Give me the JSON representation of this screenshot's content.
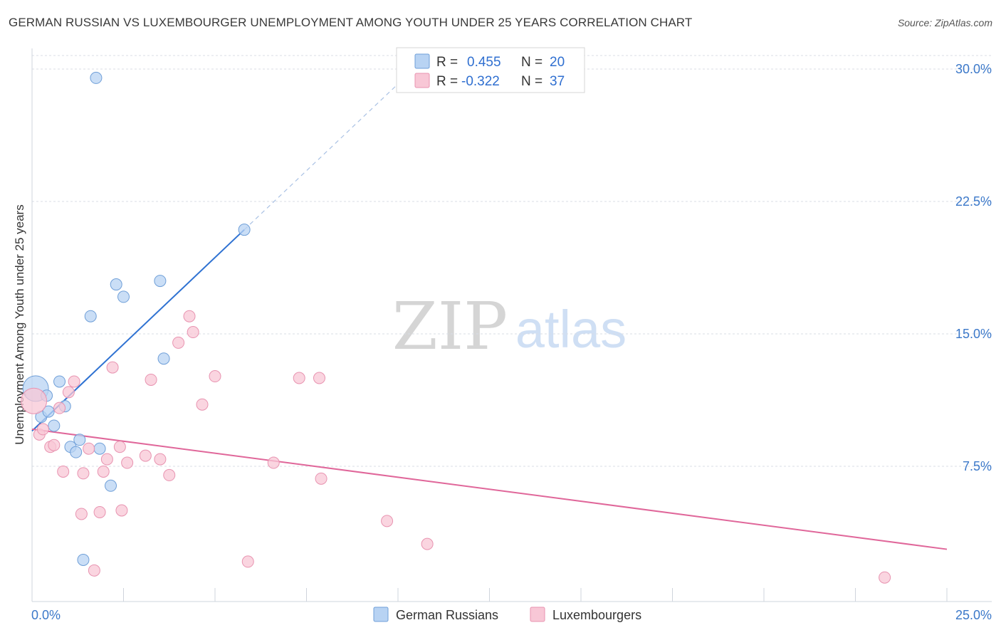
{
  "title": "GERMAN RUSSIAN VS LUXEMBOURGER UNEMPLOYMENT AMONG YOUTH UNDER 25 YEARS CORRELATION CHART",
  "source": "Source: ZipAtlas.com",
  "watermark": {
    "zip": "ZIP",
    "atlas": "atlas"
  },
  "colors": {
    "blue_fill": "#b8d3f3",
    "blue_stroke": "#6f9fd8",
    "blue_line": "#2f72d2",
    "pink_fill": "#f8c7d6",
    "pink_stroke": "#e893b0",
    "pink_line": "#e0679a",
    "grid": "#d8dde6",
    "tick_text": "#3b78c9"
  },
  "legend": {
    "rows": [
      {
        "r_label": "R =",
        "r_value": "0.455",
        "n_label": "N =",
        "n_value": "20"
      },
      {
        "r_label": "R =",
        "r_value": "-0.322",
        "n_label": "N =",
        "n_value": "37"
      }
    ]
  },
  "chart_data": {
    "type": "scatter",
    "title": "GERMAN RUSSIAN VS LUXEMBOURGER UNEMPLOYMENT AMONG YOUTH UNDER 25 YEARS CORRELATION CHART",
    "xlabel": "",
    "ylabel": "Unemployment Among Youth under 25 years",
    "xlim": [
      0,
      25
    ],
    "ylim": [
      0,
      31
    ],
    "x_tick_labels": [
      {
        "value": 0,
        "label": "0.0%"
      },
      {
        "value": 25,
        "label": "25.0%"
      }
    ],
    "y_tick_labels": [
      {
        "value": 7.5,
        "label": "7.5%"
      },
      {
        "value": 15.0,
        "label": "15.0%"
      },
      {
        "value": 22.5,
        "label": "22.5%"
      },
      {
        "value": 30.0,
        "label": "30.0%"
      }
    ],
    "grid": true,
    "legend_position": "bottom",
    "series": [
      {
        "name": "German Russians",
        "color": "#b8d3f3",
        "points": [
          [
            0.1,
            11.9,
            18
          ],
          [
            0.25,
            10.3,
            8
          ],
          [
            0.4,
            11.5,
            8
          ],
          [
            0.45,
            10.6,
            8
          ],
          [
            0.6,
            9.8,
            8
          ],
          [
            0.75,
            12.3,
            8
          ],
          [
            0.9,
            10.9,
            8
          ],
          [
            1.05,
            8.6,
            8
          ],
          [
            1.2,
            8.3,
            8
          ],
          [
            1.3,
            9.0,
            8
          ],
          [
            1.4,
            2.2,
            8
          ],
          [
            1.6,
            16.0,
            8
          ],
          [
            1.75,
            29.5,
            8
          ],
          [
            1.85,
            8.5,
            8
          ],
          [
            2.15,
            6.4,
            8
          ],
          [
            2.3,
            17.8,
            8
          ],
          [
            2.5,
            17.1,
            8
          ],
          [
            3.5,
            18.0,
            8
          ],
          [
            3.6,
            13.6,
            8
          ],
          [
            5.8,
            20.9,
            8
          ]
        ],
        "trend": {
          "x0": 0.0,
          "y0": 9.5,
          "x1": 5.8,
          "y1": 20.9,
          "dash_to_x": 10.5
        }
      },
      {
        "name": "Luxembourgers",
        "color": "#f8c7d6",
        "points": [
          [
            0.05,
            11.2,
            18
          ],
          [
            0.2,
            9.3,
            8
          ],
          [
            0.3,
            9.6,
            8
          ],
          [
            0.5,
            8.6,
            8
          ],
          [
            0.6,
            8.7,
            8
          ],
          [
            0.75,
            10.8,
            8
          ],
          [
            0.85,
            7.2,
            8
          ],
          [
            1.0,
            11.7,
            8
          ],
          [
            1.15,
            12.3,
            8
          ],
          [
            1.35,
            4.8,
            8
          ],
          [
            1.4,
            7.1,
            8
          ],
          [
            1.55,
            8.5,
            8
          ],
          [
            1.7,
            1.6,
            8
          ],
          [
            1.85,
            4.9,
            8
          ],
          [
            1.95,
            7.2,
            8
          ],
          [
            2.05,
            7.9,
            8
          ],
          [
            2.2,
            13.1,
            8
          ],
          [
            2.4,
            8.6,
            8
          ],
          [
            2.45,
            5.0,
            8
          ],
          [
            2.6,
            7.7,
            8
          ],
          [
            3.1,
            8.1,
            8
          ],
          [
            3.25,
            12.4,
            8
          ],
          [
            3.5,
            7.9,
            8
          ],
          [
            3.75,
            7.0,
            8
          ],
          [
            4.0,
            14.5,
            8
          ],
          [
            4.3,
            16.0,
            8
          ],
          [
            4.4,
            15.1,
            8
          ],
          [
            4.65,
            11.0,
            8
          ],
          [
            5.0,
            12.6,
            8
          ],
          [
            5.9,
            2.1,
            8
          ],
          [
            6.6,
            7.7,
            8
          ],
          [
            7.3,
            12.5,
            8
          ],
          [
            7.85,
            12.5,
            8
          ],
          [
            7.9,
            6.8,
            8
          ],
          [
            9.7,
            4.4,
            8
          ],
          [
            10.8,
            3.1,
            8
          ],
          [
            23.3,
            1.2,
            8
          ]
        ],
        "trend": {
          "x0": 0.0,
          "y0": 9.6,
          "x1": 25.0,
          "y1": 2.8
        }
      }
    ]
  }
}
